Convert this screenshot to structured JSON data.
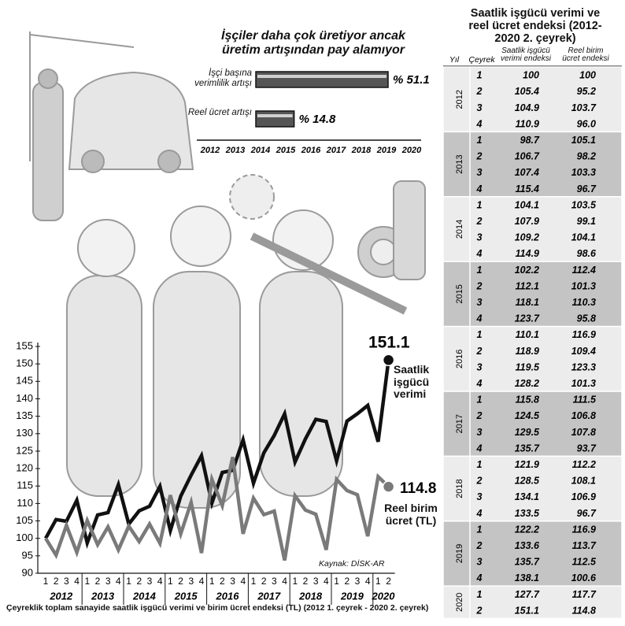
{
  "chart_data": [
    {
      "type": "hbar",
      "title": "İşçiler daha çok üretiyor ancak üretim artışından pay alamıyor",
      "categories": [
        "İşçi başına verimlilik artışı",
        "Reel ücret artışı"
      ],
      "values": [
        51.1,
        14.8
      ],
      "value_labels": [
        "% 51.1",
        "% 14.8"
      ],
      "color": "#555555",
      "years": [
        "2012",
        "2013",
        "2014",
        "2015",
        "2016",
        "2017",
        "2018",
        "2019",
        "2020"
      ]
    },
    {
      "type": "line",
      "caption": "Çeyreklik toplam sanayide saatlik işgücü verimi ve birim ücret endeksi (TL) (2012 1. çeyrek - 2020 2. çeyrek)",
      "source": "Kaynak: DİSK-AR",
      "categories": [
        "1",
        "2",
        "3",
        "4",
        "1",
        "2",
        "3",
        "4",
        "1",
        "2",
        "3",
        "4",
        "1",
        "2",
        "3",
        "4",
        "1",
        "2",
        "3",
        "4",
        "1",
        "2",
        "3",
        "4",
        "1",
        "2",
        "3",
        "4",
        "1",
        "2",
        "3",
        "4",
        "1",
        "2"
      ],
      "year_labels": [
        "2012",
        "2013",
        "2014",
        "2015",
        "2016",
        "2017",
        "2018",
        "2019",
        "2020"
      ],
      "series": [
        {
          "name": "Saatlik işgücü verimi",
          "color": "#111111",
          "values": [
            100,
            105.4,
            104.9,
            110.9,
            98.7,
            106.7,
            107.4,
            115.4,
            104.1,
            107.9,
            109.2,
            114.9,
            102.2,
            112.1,
            118.1,
            123.7,
            110.1,
            118.9,
            119.5,
            128.2,
            115.8,
            124.5,
            129.5,
            135.7,
            121.9,
            128.5,
            134.1,
            133.5,
            122.2,
            133.6,
            135.7,
            138.1,
            127.7,
            151.1
          ]
        },
        {
          "name": "Reel birim ücret (TL)",
          "color": "#7a7a7a",
          "values": [
            100,
            95.2,
            103.7,
            96.0,
            105.1,
            98.2,
            103.3,
            96.7,
            103.5,
            99.1,
            104.1,
            98.6,
            112.4,
            101.3,
            110.3,
            95.8,
            116.9,
            109.4,
            123.3,
            101.3,
            111.5,
            106.8,
            107.8,
            93.7,
            112.2,
            108.1,
            106.9,
            96.7,
            116.9,
            113.7,
            112.5,
            100.6,
            117.7,
            114.8
          ]
        }
      ],
      "ylim": [
        90,
        157
      ],
      "yticks": [
        90,
        95,
        100,
        105,
        110,
        115,
        120,
        125,
        130,
        135,
        140,
        145,
        150,
        155
      ],
      "grid": false
    }
  ],
  "table": {
    "title": "Saatlik işgücü verimi ve reel ücret endeksi (2012-2020 2. çeyrek)",
    "headers": [
      "Yıl",
      "Çeyrek",
      "Saatlik işgücü verimi endeksi",
      "Reel birim ücret endeksi"
    ],
    "groups": [
      {
        "year": "2012",
        "rows": [
          [
            "1",
            "100",
            "100"
          ],
          [
            "2",
            "105.4",
            "95.2"
          ],
          [
            "3",
            "104.9",
            "103.7"
          ],
          [
            "4",
            "110.9",
            "96.0"
          ]
        ]
      },
      {
        "year": "2013",
        "rows": [
          [
            "1",
            "98.7",
            "105.1"
          ],
          [
            "2",
            "106.7",
            "98.2"
          ],
          [
            "3",
            "107.4",
            "103.3"
          ],
          [
            "4",
            "115.4",
            "96.7"
          ]
        ]
      },
      {
        "year": "2014",
        "rows": [
          [
            "1",
            "104.1",
            "103.5"
          ],
          [
            "2",
            "107.9",
            "99.1"
          ],
          [
            "3",
            "109.2",
            "104.1"
          ],
          [
            "4",
            "114.9",
            "98.6"
          ]
        ]
      },
      {
        "year": "2015",
        "rows": [
          [
            "1",
            "102.2",
            "112.4"
          ],
          [
            "2",
            "112.1",
            "101.3"
          ],
          [
            "3",
            "118.1",
            "110.3"
          ],
          [
            "4",
            "123.7",
            "95.8"
          ]
        ]
      },
      {
        "year": "2016",
        "rows": [
          [
            "1",
            "110.1",
            "116.9"
          ],
          [
            "2",
            "118.9",
            "109.4"
          ],
          [
            "3",
            "119.5",
            "123.3"
          ],
          [
            "4",
            "128.2",
            "101.3"
          ]
        ]
      },
      {
        "year": "2017",
        "rows": [
          [
            "1",
            "115.8",
            "111.5"
          ],
          [
            "2",
            "124.5",
            "106.8"
          ],
          [
            "3",
            "129.5",
            "107.8"
          ],
          [
            "4",
            "135.7",
            "93.7"
          ]
        ]
      },
      {
        "year": "2018",
        "rows": [
          [
            "1",
            "121.9",
            "112.2"
          ],
          [
            "2",
            "128.5",
            "108.1"
          ],
          [
            "3",
            "134.1",
            "106.9"
          ],
          [
            "4",
            "133.5",
            "96.7"
          ]
        ]
      },
      {
        "year": "2019",
        "rows": [
          [
            "1",
            "122.2",
            "116.9"
          ],
          [
            "2",
            "133.6",
            "113.7"
          ],
          [
            "3",
            "135.7",
            "112.5"
          ],
          [
            "4",
            "138.1",
            "100.6"
          ]
        ]
      },
      {
        "year": "2020",
        "rows": [
          [
            "1",
            "127.7",
            "117.7"
          ],
          [
            "2",
            "151.1",
            "114.8"
          ]
        ]
      }
    ]
  }
}
